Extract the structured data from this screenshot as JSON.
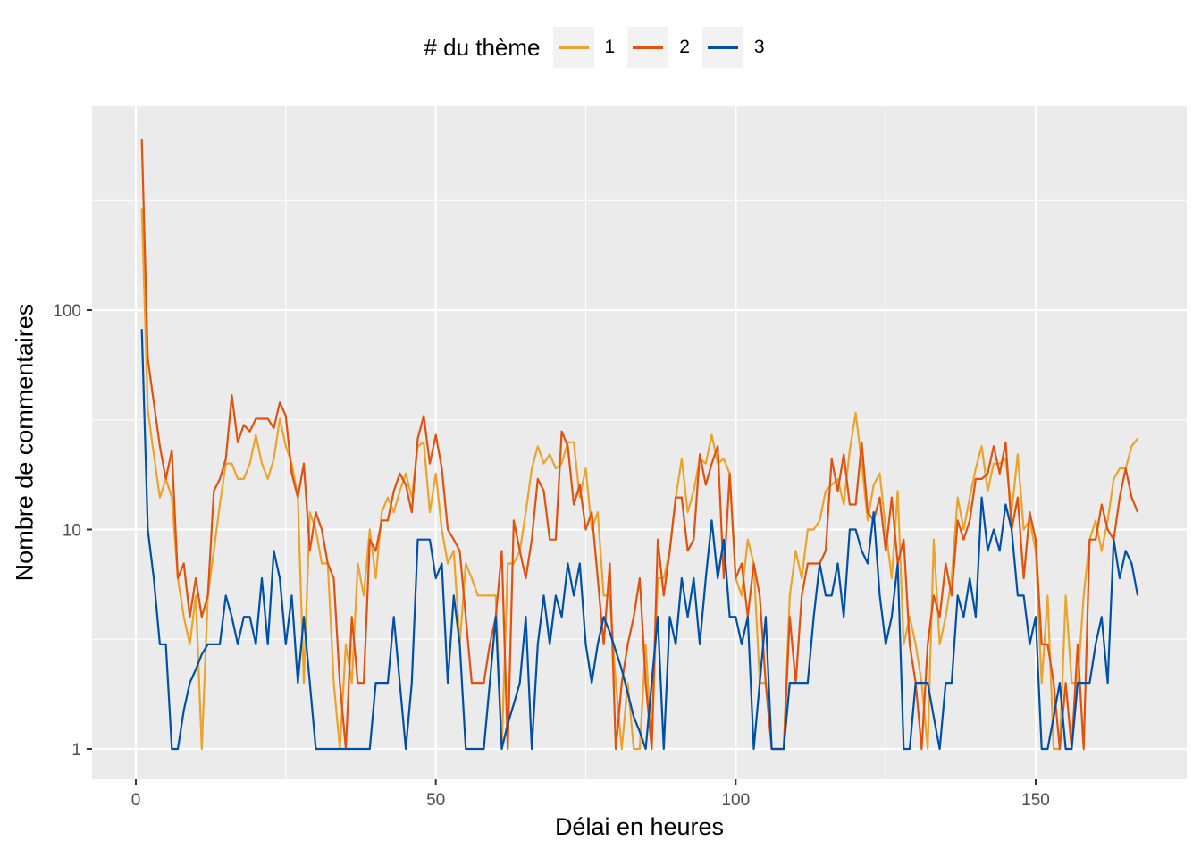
{
  "chart_data": {
    "type": "line",
    "title": "",
    "xlabel": "Délai en heures",
    "ylabel": "Nombre de commentaires",
    "x_scale": "linear",
    "y_scale": "log10",
    "xlim": [
      -7.3,
      175.2
    ],
    "ylim_log": [
      0.864,
      0.75
    ],
    "x_ticks": [
      0,
      50,
      100,
      150
    ],
    "x_tick_labels": [
      "0",
      "50",
      "100",
      "150"
    ],
    "y_ticks": [
      1,
      10,
      100
    ],
    "y_tick_labels": [
      "1",
      "10",
      "100"
    ],
    "grid": true,
    "legend": {
      "title": "# du thème",
      "position": "top",
      "entries": [
        "1",
        "2",
        "3"
      ]
    },
    "x_start": 1,
    "series": [
      {
        "name": "1",
        "color": "#EBA32B",
        "values": [
          290,
          35,
          22,
          14,
          17,
          14,
          6,
          4,
          3,
          5,
          1,
          5,
          8,
          13,
          20,
          20,
          17,
          17,
          20,
          27,
          20,
          17,
          21,
          32,
          24,
          20,
          14,
          2,
          12,
          10,
          7,
          7,
          2,
          1,
          3,
          2,
          7,
          5,
          10,
          6,
          12,
          14,
          12,
          15,
          18,
          14,
          24,
          25,
          12,
          18,
          10,
          7,
          8,
          3,
          7,
          6,
          5,
          5,
          5,
          5,
          1,
          7,
          7,
          8,
          12,
          19,
          24,
          20,
          22,
          19,
          20,
          25,
          25,
          14,
          19,
          10,
          12,
          5,
          5,
          2,
          1,
          2,
          1,
          1,
          3,
          1,
          6,
          6,
          8,
          14,
          21,
          12,
          15,
          21,
          20,
          27,
          20,
          21,
          18,
          6,
          5,
          9,
          7,
          2,
          2,
          1,
          1,
          1,
          5,
          8,
          6,
          10,
          10,
          11,
          15,
          16,
          17,
          13,
          23,
          34,
          20,
          11,
          16,
          18,
          10,
          6,
          15,
          3,
          4,
          3,
          2,
          1,
          9,
          3,
          4,
          6,
          14,
          10,
          14,
          19,
          24,
          15,
          20,
          20,
          21,
          12,
          22,
          10,
          11,
          8,
          2,
          5,
          1,
          1,
          5,
          2,
          2,
          5,
          9,
          11,
          8,
          11,
          17,
          19,
          19,
          24,
          26
        ]
      },
      {
        "name": "2",
        "color": "#E2520F",
        "values": [
          600,
          60,
          38,
          24,
          17,
          23,
          6,
          7,
          4,
          6,
          4,
          5,
          15,
          17,
          21,
          41,
          25,
          30,
          28,
          32,
          32,
          32,
          29,
          38,
          33,
          18,
          14,
          20,
          8,
          12,
          10,
          7,
          6,
          2,
          1,
          4,
          2,
          2,
          9,
          8,
          11,
          11,
          15,
          18,
          16,
          12,
          26,
          33,
          20,
          27,
          19,
          10,
          9,
          8,
          4,
          2,
          2,
          2,
          3,
          4,
          8,
          1,
          11,
          8,
          6,
          9,
          17,
          15,
          9,
          9,
          28,
          24,
          13,
          16,
          10,
          12,
          6,
          3,
          7,
          1,
          2,
          3,
          4,
          6,
          2,
          1,
          9,
          5,
          8,
          14,
          14,
          8,
          9,
          22,
          16,
          20,
          24,
          6,
          18,
          6,
          7,
          4,
          7,
          5,
          2,
          1,
          1,
          1,
          4,
          2,
          5,
          7,
          7,
          7,
          8,
          21,
          15,
          22,
          13,
          13,
          25,
          12,
          11,
          14,
          8,
          14,
          7,
          9,
          3,
          2,
          1,
          3,
          5,
          4,
          7,
          5,
          11,
          9,
          11,
          17,
          17,
          18,
          24,
          18,
          25,
          10,
          14,
          6,
          12,
          9,
          3,
          3,
          2,
          1,
          2,
          1,
          3,
          1,
          9,
          9,
          13,
          10,
          9,
          14,
          19,
          14,
          12
        ]
      },
      {
        "name": "3",
        "color": "#0050A8",
        "values": [
          82,
          10,
          6,
          3,
          3,
          1,
          1,
          1.5,
          2,
          2.3,
          2.7,
          3,
          3,
          3,
          5,
          4,
          3,
          4,
          4,
          3,
          6,
          3,
          8,
          6,
          3,
          5,
          2,
          4,
          2,
          1,
          1,
          1,
          1,
          1,
          1,
          1,
          1,
          1,
          1,
          2,
          2,
          2,
          4,
          2,
          1,
          2,
          9,
          9,
          9,
          6,
          7,
          2,
          5,
          3,
          1,
          1,
          1,
          1,
          2,
          4,
          1,
          1.3,
          1.6,
          2,
          4,
          1,
          3,
          5,
          3,
          5,
          4,
          7,
          5,
          7,
          3,
          2,
          3,
          4,
          3.4,
          2.8,
          2.3,
          1.8,
          1.4,
          1.2,
          1,
          2,
          4,
          1,
          4,
          3,
          6,
          4,
          6,
          3,
          6,
          11,
          6,
          9,
          4,
          4,
          3,
          4,
          1,
          2,
          4,
          1,
          1,
          1,
          2,
          2,
          2,
          2,
          4,
          7,
          5,
          5,
          7,
          4,
          10,
          10,
          8,
          7,
          12,
          5,
          3,
          4,
          7,
          1,
          1,
          2,
          2,
          2,
          1.4,
          1,
          2,
          2,
          5,
          4,
          6,
          4,
          14,
          8,
          10,
          8,
          13,
          10,
          5,
          5,
          3,
          4,
          1,
          1,
          1.4,
          2,
          1,
          1,
          2,
          2,
          2,
          3,
          4,
          2,
          9,
          6,
          8,
          7,
          5
        ]
      }
    ]
  },
  "legend": {
    "title": "# du thème",
    "items": [
      {
        "label": "1",
        "color": "#EBA32B"
      },
      {
        "label": "2",
        "color": "#E2520F"
      },
      {
        "label": "3",
        "color": "#0050A8"
      }
    ]
  },
  "axes": {
    "x_title": "Délai en heures",
    "y_title": "Nombre de commentaires"
  }
}
